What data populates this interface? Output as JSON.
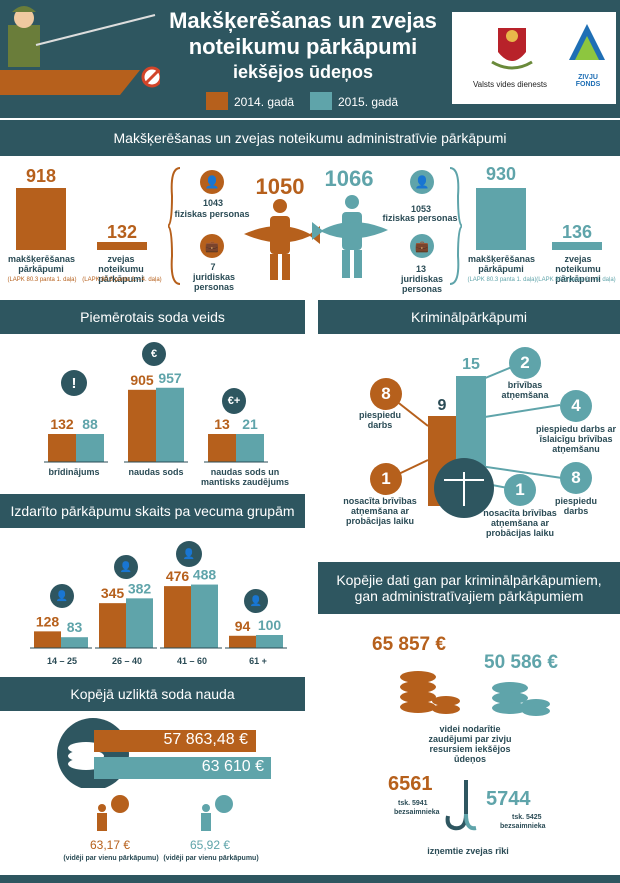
{
  "header": {
    "title_line1": "Makšķerēšanas un zvejas",
    "title_line2": "noteikumu pārkāpumi",
    "title_line3": "iekšējos ūdeņos",
    "legend_2014": "2014. gadā",
    "legend_2015": "2015. gadā",
    "logo1_text": "Valsts vides dienests",
    "logo2_text": "ZIVJU FONDS"
  },
  "colors": {
    "y2014": "#b6601c",
    "y2015": "#5fa4aa",
    "band": "#2e5660",
    "text": "#2a4b55"
  },
  "sections": {
    "admin": "Makšķerēšanas un zvejas noteikumu administratīvie pārkāpumi",
    "penalty": "Piemērotais soda veids",
    "criminal": "Kriminālpārkāpumi",
    "age": "Izdarīto pārkāpumu skaits pa vecuma grupām",
    "fine": "Kopējā uzliktā soda nauda",
    "total_line1": "Kopējie dati gan par kriminālpārkāpumiem,",
    "total_line2": "gan administratīvajiem pārkāpumiem"
  },
  "chart_data": [
    {
      "type": "bar",
      "title": "Makšķerēšanas un zvejas noteikumu administratīvie pārkāpumi",
      "categories": [
        "makšķerēšanas pārkāpumi",
        "zvejas noteikumu pārkāpumi"
      ],
      "category_notes": [
        "(LAPK 80.3 panta 1. daļa)",
        "(LAPK 80.3 panta 2. - 4. daļa)"
      ],
      "series": [
        {
          "name": "2014. gadā",
          "values": [
            918,
            132
          ]
        },
        {
          "name": "2015. gadā",
          "values": [
            930,
            136
          ]
        }
      ],
      "totals": {
        "y2014": 1050,
        "y2015": 1066
      },
      "persons": {
        "y2014": {
          "physical": 1043,
          "physical_label": "fiziskas personas",
          "legal": 7,
          "legal_label": "juridiskas personas"
        },
        "y2015": {
          "physical": 1053,
          "physical_label": "fiziskas personas",
          "legal": 13,
          "legal_label": "juridiskas personas"
        }
      }
    },
    {
      "type": "bar",
      "title": "Piemērotais soda veids",
      "categories": [
        "brīdinājums",
        "naudas sods",
        "naudas sods un mantisks zaudējums"
      ],
      "series": [
        {
          "name": "2014. gadā",
          "values": [
            132,
            905,
            13
          ]
        },
        {
          "name": "2015. gadā",
          "values": [
            88,
            957,
            21
          ]
        }
      ]
    },
    {
      "type": "bar",
      "title": "Izdarīto pārkāpumu skaits pa vecuma grupām",
      "categories": [
        "14 – 25",
        "26 – 40",
        "41 – 60",
        "61 +"
      ],
      "series": [
        {
          "name": "2014. gadā",
          "values": [
            128,
            345,
            476,
            94
          ]
        },
        {
          "name": "2015. gadā",
          "values": [
            83,
            382,
            488,
            100
          ]
        }
      ]
    },
    {
      "type": "bar",
      "title": "Kriminālpārkāpumi",
      "categories": [
        "Kriminālpārkāpumi"
      ],
      "series": [
        {
          "name": "2014. gadā",
          "values": [
            9
          ]
        },
        {
          "name": "2015. gadā",
          "values": [
            15
          ]
        }
      ],
      "breakdown_2014": [
        {
          "value": 8,
          "label": "piespiedu darbs"
        },
        {
          "value": 1,
          "label": "nosacīta brīvības atņemšana ar probācijas laiku"
        }
      ],
      "breakdown_2015": [
        {
          "value": 2,
          "label": "brīvības atņemšana"
        },
        {
          "value": 4,
          "label": "piespiedu darbs ar īslaicīgu brīvības atņemšanu"
        },
        {
          "value": 8,
          "label": "piespiedu darbs"
        },
        {
          "value": 1,
          "label": "nosacīta brīvības atņemšana ar probācijas laiku"
        }
      ]
    }
  ],
  "fine": {
    "total_2014": "57 863,48 €",
    "total_2015": "63 610 €",
    "avg_2014": "63,17 €",
    "avg_2015": "65,92 €",
    "avg_label": "(vidēji par vienu pārkāpumu)"
  },
  "totals": {
    "damage_2014": "65 857 €",
    "damage_2015": "50 586 €",
    "damage_label": "videi nodarītie zaudējumi par zivju resursiem iekšējos ūdeņos",
    "gear_2014": "6561",
    "gear_2014_sub": "tsk. 5941",
    "gear_2014_sub2": "bezsaimnieka",
    "gear_2015": "5744",
    "gear_2015_sub": "tsk. 5425",
    "gear_2015_sub2": "bezsaimnieka",
    "gear_label": "izņemtie zvejas rīki"
  }
}
